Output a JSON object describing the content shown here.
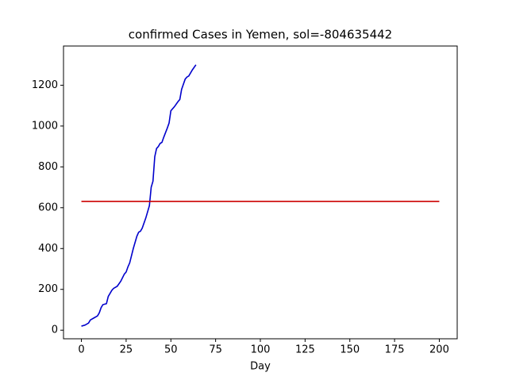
{
  "chart_data": {
    "type": "line",
    "title": "confirmed Cases in Yemen, sol=-804635442",
    "xlabel": "Day",
    "series": [
      {
        "color": "#0000cc",
        "x": [
          0,
          2,
          4,
          5,
          7,
          9,
          10,
          11,
          12,
          14,
          15,
          17,
          18,
          20,
          22,
          24,
          25,
          26,
          27,
          29,
          31,
          32,
          33,
          34,
          36,
          38,
          39,
          40,
          41,
          42,
          43,
          44,
          45,
          46,
          48,
          49,
          50,
          52,
          54,
          55,
          56,
          58,
          59,
          60,
          62,
          64
        ],
        "values": [
          20,
          25,
          35,
          50,
          60,
          70,
          85,
          110,
          125,
          130,
          165,
          195,
          205,
          215,
          240,
          275,
          285,
          310,
          330,
          400,
          460,
          480,
          485,
          500,
          550,
          610,
          700,
          730,
          850,
          890,
          900,
          915,
          920,
          945,
          990,
          1015,
          1075,
          1095,
          1120,
          1130,
          1180,
          1230,
          1240,
          1245,
          1275,
          1300
        ]
      },
      {
        "color": "#cc0000",
        "x": [
          0,
          200
        ],
        "values": [
          631,
          631
        ]
      }
    ],
    "xlim": [
      -10,
      210
    ],
    "xticks": [
      0,
      25,
      50,
      75,
      100,
      125,
      150,
      175,
      200
    ],
    "ylim": [
      -42,
      1392
    ],
    "yticks": [
      0,
      200,
      400,
      600,
      800,
      1000,
      1200
    ]
  }
}
